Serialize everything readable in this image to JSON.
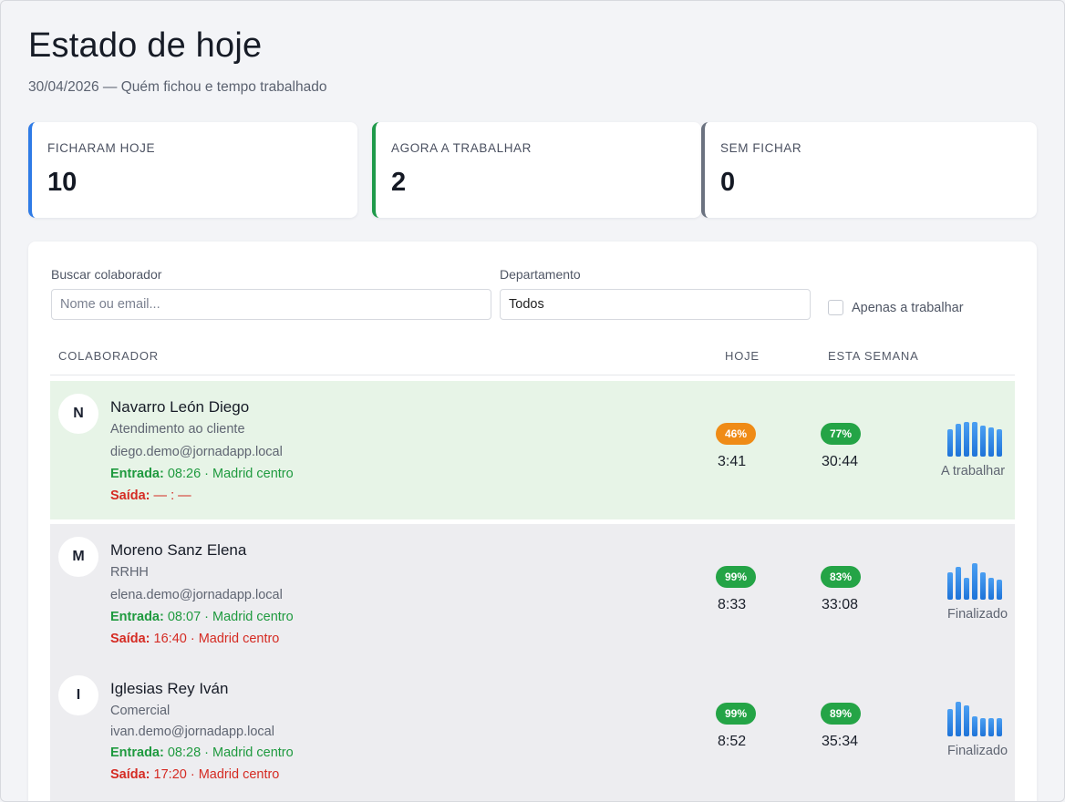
{
  "header": {
    "title": "Estado de hoje",
    "subtitle": "30/04/2026 — Quém fichou e tempo trabalhado"
  },
  "stats": [
    {
      "label": "FICHARAM HOJE",
      "value": "10",
      "color": "#2f7be6"
    },
    {
      "label": "AGORA A TRABALHAR",
      "value": "2",
      "color": "#1f9a4a"
    },
    {
      "label": "SEM FICHAR",
      "value": "0",
      "color": "#6b7280"
    }
  ],
  "filters": {
    "search_label": "Buscar colaborador",
    "search_placeholder": "Nome ou email...",
    "search_value": "",
    "department_label": "Departamento",
    "department_value": "Todos",
    "only_working_label": "Apenas a trabalhar",
    "only_working_checked": false
  },
  "table": {
    "headers": {
      "collaborator": "COLABORADOR",
      "today": "HOJE",
      "week": "ESTA SEMANA"
    },
    "rows": [
      {
        "initial": "N",
        "name": "Navarro León Diego",
        "department": "Atendimento ao cliente",
        "email": "diego.demo@jornadapp.local",
        "entry_label": "Entrada:",
        "entry_value": "08:26 · Madrid centro",
        "exit_label": "Saída:",
        "exit_value": "— : —",
        "today_pct": "46%",
        "today_pct_color": "orange",
        "today_time": "3:41",
        "week_pct": "77%",
        "week_time": "30:44",
        "weekly_bars": [
          0.75,
          0.9,
          0.95,
          0.95,
          0.85,
          0.8,
          0.75
        ],
        "status": "A trabalhar",
        "working": true
      },
      {
        "initial": "M",
        "name": "Moreno Sanz Elena",
        "department": "RRHH",
        "email": "elena.demo@jornadapp.local",
        "entry_label": "Entrada:",
        "entry_value": "08:07 · Madrid centro",
        "exit_label": "Saída:",
        "exit_value": "16:40 · Madrid centro",
        "today_pct": "99%",
        "today_pct_color": "green",
        "today_time": "8:33",
        "week_pct": "83%",
        "week_time": "33:08",
        "weekly_bars": [
          0.75,
          0.9,
          0.6,
          1.0,
          0.75,
          0.6,
          0.55
        ],
        "status": "Finalizado",
        "working": false
      },
      {
        "initial": "I",
        "name": "Iglesias Rey Iván",
        "department": "Comercial",
        "email": "ivan.demo@jornadapp.local",
        "entry_label": "Entrada:",
        "entry_value": "08:28 · Madrid centro",
        "exit_label": "Saída:",
        "exit_value": "17:20 · Madrid centro",
        "today_pct": "99%",
        "today_pct_color": "green",
        "today_time": "8:52",
        "week_pct": "89%",
        "week_time": "35:34",
        "weekly_bars": [
          0.75,
          0.95,
          0.85,
          0.55,
          0.5,
          0.5,
          0.5
        ],
        "status": "Finalizado",
        "working": false
      }
    ]
  }
}
